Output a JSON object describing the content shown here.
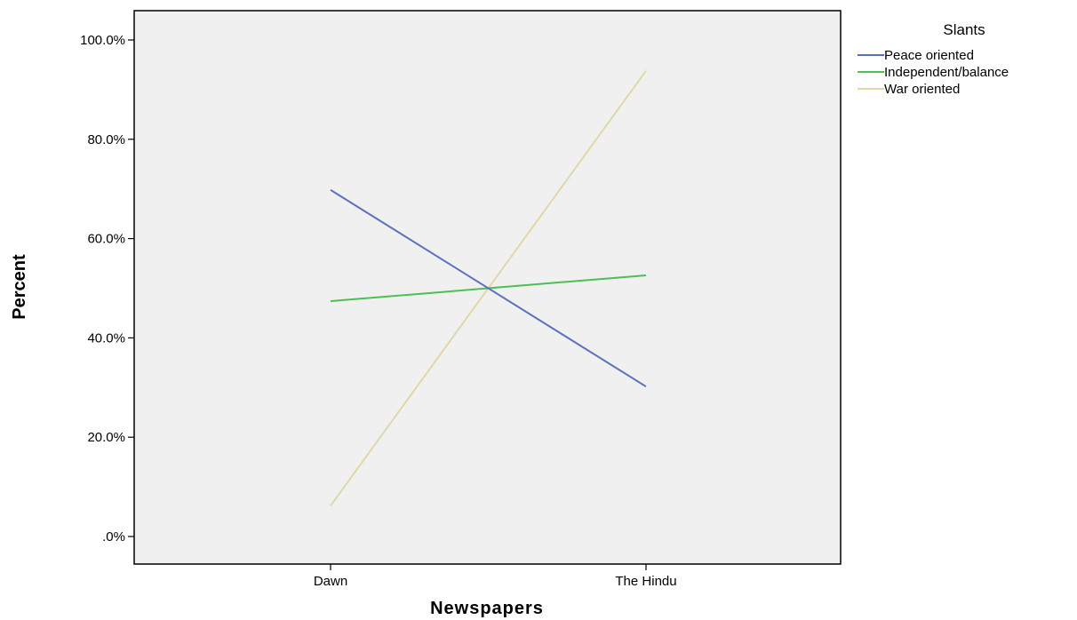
{
  "chart_data": {
    "type": "line",
    "title": "",
    "xlabel": "Newspapers",
    "ylabel": "Percent",
    "categories": [
      "Dawn",
      "The Hindu"
    ],
    "ylim": [
      0,
      100
    ],
    "yticks": [
      0,
      20,
      40,
      60,
      80,
      100
    ],
    "ytick_labels": [
      ".0%",
      "20.0%",
      "40.0%",
      "60.0%",
      "80.0%",
      "100.0%"
    ],
    "grid": false,
    "plot_background": "#f0f0f0",
    "legend": {
      "title": "Slants",
      "placement": "top-right outside"
    },
    "series": [
      {
        "name": "Peace oriented",
        "values": [
          69.8,
          30.2
        ],
        "color": "#5b6fbe"
      },
      {
        "name": "Independent/balance",
        "values": [
          47.4,
          52.6
        ],
        "color": "#4cbf55"
      },
      {
        "name": "War oriented",
        "values": [
          6.2,
          93.8
        ],
        "color": "#e0d8a8"
      }
    ]
  }
}
